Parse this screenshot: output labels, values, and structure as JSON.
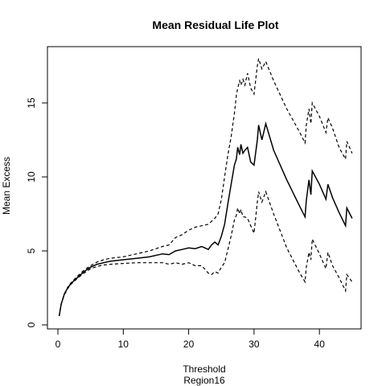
{
  "chart_data": {
    "type": "line",
    "title": "Mean Residual Life Plot",
    "xlabel": "Threshold",
    "xlabel_sub": "Region16",
    "ylabel": "Mean Excess",
    "xlim": [
      0,
      45
    ],
    "ylim": [
      0,
      18
    ],
    "xticks": [
      0,
      10,
      20,
      30,
      40
    ],
    "yticks": [
      0,
      5,
      10,
      15
    ],
    "grid": false,
    "legend": "none",
    "series": [
      {
        "line_style": "solid",
        "color": "#000000",
        "points": [
          [
            0.2,
            0.6
          ],
          [
            0.5,
            1.4
          ],
          [
            1,
            2.1
          ],
          [
            1.5,
            2.5
          ],
          [
            2,
            2.8
          ],
          [
            3,
            3.2
          ],
          [
            4,
            3.6
          ],
          [
            5,
            3.9
          ],
          [
            6,
            4.1
          ],
          [
            7,
            4.2
          ],
          [
            8,
            4.3
          ],
          [
            10,
            4.4
          ],
          [
            12,
            4.5
          ],
          [
            14,
            4.6
          ],
          [
            16,
            4.8
          ],
          [
            17,
            4.75
          ],
          [
            18,
            5.0
          ],
          [
            19,
            5.1
          ],
          [
            20,
            5.2
          ],
          [
            21,
            5.15
          ],
          [
            22,
            5.3
          ],
          [
            23,
            5.1
          ],
          [
            23.5,
            5.4
          ],
          [
            24,
            5.6
          ],
          [
            24.5,
            5.4
          ],
          [
            25,
            6.0
          ],
          [
            25.5,
            6.8
          ],
          [
            26,
            8.2
          ],
          [
            26.5,
            9.5
          ],
          [
            27,
            10.8
          ],
          [
            27.3,
            11.2
          ],
          [
            27.5,
            12.0
          ],
          [
            27.8,
            11.5
          ],
          [
            28,
            12.2
          ],
          [
            28.3,
            11.6
          ],
          [
            28.6,
            11.8
          ],
          [
            29,
            12.0
          ],
          [
            29.5,
            11.0
          ],
          [
            30,
            10.8
          ],
          [
            30.5,
            12.5
          ],
          [
            30.7,
            13.5
          ],
          [
            31.2,
            12.5
          ],
          [
            31.8,
            13.6
          ],
          [
            33,
            11.8
          ],
          [
            35,
            9.8
          ],
          [
            37,
            8.0
          ],
          [
            37.8,
            7.3
          ],
          [
            38,
            8.4
          ],
          [
            38.4,
            9.8
          ],
          [
            38.7,
            8.8
          ],
          [
            38.9,
            10.4
          ],
          [
            40,
            9.5
          ],
          [
            41,
            8.5
          ],
          [
            41.3,
            9.5
          ],
          [
            42,
            8.6
          ],
          [
            43,
            7.6
          ],
          [
            44,
            6.7
          ],
          [
            44.2,
            7.9
          ],
          [
            45,
            7.2
          ]
        ]
      },
      {
        "line_style": "dashed",
        "color": "#000000",
        "points": [
          [
            0.2,
            0.6
          ],
          [
            0.5,
            1.4
          ],
          [
            1,
            2.1
          ],
          [
            1.5,
            2.55
          ],
          [
            2,
            2.85
          ],
          [
            3,
            3.3
          ],
          [
            4,
            3.7
          ],
          [
            5,
            4.0
          ],
          [
            6,
            4.25
          ],
          [
            7,
            4.4
          ],
          [
            8,
            4.5
          ],
          [
            10,
            4.6
          ],
          [
            12,
            4.8
          ],
          [
            14,
            5.0
          ],
          [
            16,
            5.3
          ],
          [
            17,
            5.4
          ],
          [
            18,
            5.9
          ],
          [
            19,
            6.1
          ],
          [
            20,
            6.4
          ],
          [
            21,
            6.6
          ],
          [
            22,
            6.7
          ],
          [
            23,
            6.8
          ],
          [
            23.5,
            7.0
          ],
          [
            24,
            7.2
          ],
          [
            24.5,
            7.5
          ],
          [
            25,
            8.5
          ],
          [
            25.5,
            10.0
          ],
          [
            26,
            11.5
          ],
          [
            26.5,
            12.7
          ],
          [
            27,
            14.3
          ],
          [
            27.3,
            15.5
          ],
          [
            27.5,
            16.0
          ],
          [
            27.8,
            16.5
          ],
          [
            28,
            16.2
          ],
          [
            28.3,
            16.6
          ],
          [
            28.6,
            16.2
          ],
          [
            29,
            17.0
          ],
          [
            29.5,
            16.0
          ],
          [
            30,
            15.6
          ],
          [
            30.5,
            17.5
          ],
          [
            30.7,
            18.0
          ],
          [
            31.2,
            17.3
          ],
          [
            31.8,
            17.8
          ],
          [
            33,
            16.5
          ],
          [
            35,
            14.6
          ],
          [
            37,
            13.0
          ],
          [
            37.8,
            12.3
          ],
          [
            38,
            13.5
          ],
          [
            38.4,
            14.6
          ],
          [
            38.7,
            13.6
          ],
          [
            38.9,
            15.0
          ],
          [
            40,
            14.1
          ],
          [
            41,
            13.0
          ],
          [
            41.3,
            14.0
          ],
          [
            42,
            13.3
          ],
          [
            43,
            12.0
          ],
          [
            44,
            11.2
          ],
          [
            44.2,
            12.4
          ],
          [
            45,
            11.6
          ]
        ]
      },
      {
        "line_style": "dashed",
        "color": "#000000",
        "points": [
          [
            0.2,
            0.6
          ],
          [
            0.5,
            1.4
          ],
          [
            1,
            2.05
          ],
          [
            1.5,
            2.45
          ],
          [
            2,
            2.75
          ],
          [
            3,
            3.15
          ],
          [
            4,
            3.5
          ],
          [
            5,
            3.8
          ],
          [
            6,
            3.95
          ],
          [
            7,
            4.05
          ],
          [
            8,
            4.1
          ],
          [
            10,
            4.15
          ],
          [
            12,
            4.2
          ],
          [
            14,
            4.2
          ],
          [
            16,
            4.2
          ],
          [
            17,
            4.1
          ],
          [
            18,
            4.2
          ],
          [
            19,
            4.1
          ],
          [
            20,
            4.2
          ],
          [
            21,
            4.0
          ],
          [
            22,
            4.0
          ],
          [
            23,
            3.5
          ],
          [
            23.5,
            3.4
          ],
          [
            24,
            3.6
          ],
          [
            24.5,
            3.5
          ],
          [
            25,
            3.9
          ],
          [
            25.5,
            4.2
          ],
          [
            26,
            5.1
          ],
          [
            26.5,
            6.0
          ],
          [
            27,
            7.1
          ],
          [
            27.3,
            7.4
          ],
          [
            27.5,
            7.9
          ],
          [
            27.8,
            7.5
          ],
          [
            28,
            7.8
          ],
          [
            28.3,
            7.3
          ],
          [
            28.6,
            7.3
          ],
          [
            29,
            7.2
          ],
          [
            29.5,
            6.7
          ],
          [
            30,
            6.2
          ],
          [
            30.5,
            8.3
          ],
          [
            30.7,
            9.0
          ],
          [
            31.2,
            8.3
          ],
          [
            31.8,
            9.0
          ],
          [
            33,
            7.5
          ],
          [
            35,
            5.2
          ],
          [
            37,
            3.5
          ],
          [
            37.8,
            2.9
          ],
          [
            38,
            3.9
          ],
          [
            38.4,
            4.9
          ],
          [
            38.7,
            4.4
          ],
          [
            38.9,
            5.8
          ],
          [
            40,
            4.8
          ],
          [
            41,
            3.8
          ],
          [
            41.3,
            4.9
          ],
          [
            42,
            4.0
          ],
          [
            43,
            3.2
          ],
          [
            44,
            2.3
          ],
          [
            44.2,
            3.4
          ],
          [
            45,
            2.9
          ]
        ]
      }
    ]
  }
}
